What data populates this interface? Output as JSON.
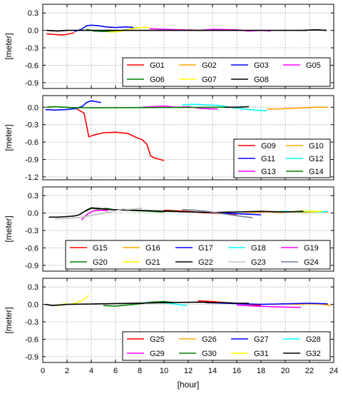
{
  "figure": {
    "xlabel": "[hour]",
    "x_ticks": [
      0,
      2,
      4,
      6,
      8,
      10,
      12,
      14,
      16,
      18,
      20,
      22,
      24
    ],
    "xlim": [
      0,
      24
    ]
  },
  "colors": {
    "red": "#ff0000",
    "orange": "#ffa500",
    "blue": "#0000ff",
    "cyan": "#00ffff",
    "magenta": "#ff00ff",
    "green": "#008000",
    "yellow": "#ffff00",
    "black": "#000000",
    "lightgray": "#c0c0c0",
    "slategray": "#708090"
  },
  "chart_data": [
    {
      "type": "line",
      "ylabel": "[meter]",
      "ylim": [
        -1.0,
        0.45
      ],
      "y_ticks": [
        0.3,
        0.0,
        -0.3,
        -0.6,
        -0.9
      ],
      "y_tick_labels": [
        "0.3",
        "0.0",
        "-0.3",
        "-0.6",
        "-0.9"
      ],
      "grid": true,
      "legend_position": "lower-right",
      "legend_columns": 4,
      "series": [
        {
          "name": "G01",
          "color": "#ff0000",
          "x": [
            0.3,
            1.0,
            1.6,
            2.2,
            2.6
          ],
          "y": [
            -0.06,
            -0.07,
            -0.08,
            -0.06,
            -0.04
          ]
        },
        {
          "name": "G02",
          "color": "#ffa500",
          "x": [
            12.0,
            13.0,
            14.2
          ],
          "y": [
            0.01,
            0.0,
            0.01
          ]
        },
        {
          "name": "G03",
          "color": "#0000ff",
          "x": [
            2.6,
            3.2,
            3.6,
            4.0,
            4.6,
            5.2,
            6.0,
            6.8,
            7.5
          ],
          "y": [
            -0.02,
            0.02,
            0.08,
            0.09,
            0.08,
            0.06,
            0.05,
            0.06,
            0.05
          ]
        },
        {
          "name": "G05",
          "color": "#ff00ff",
          "x": [
            8.8,
            10.0,
            11.5,
            13.0,
            14.0,
            16.0,
            17.0,
            18.0,
            18.8
          ],
          "y": [
            0.03,
            0.02,
            0.01,
            0.0,
            0.02,
            0.01,
            -0.01,
            0.0,
            -0.01
          ]
        },
        {
          "name": "G06",
          "color": "#008000",
          "x": [
            3.6,
            4.2,
            5.0,
            5.8,
            6.6,
            7.2,
            7.8
          ],
          "y": [
            0.02,
            -0.01,
            -0.02,
            -0.01,
            0.0,
            0.02,
            0.05
          ]
        },
        {
          "name": "G07",
          "color": "#ffff00",
          "x": [
            5.5,
            6.3,
            7.0,
            7.6,
            8.2,
            8.8
          ],
          "y": [
            -0.03,
            -0.02,
            0.01,
            0.04,
            0.05,
            0.05
          ]
        },
        {
          "name": "G08",
          "color": "#000000",
          "x": [
            0.3,
            1.2,
            2.0,
            21.5,
            22.5,
            23.4
          ],
          "y": [
            0.0,
            -0.01,
            0.0,
            0.0,
            0.01,
            0.0
          ]
        },
        {
          "name": "",
          "color": "#000000",
          "x": [
            0.3,
            1.2,
            2.0
          ],
          "y": [
            0.0,
            -0.01,
            0.0
          ]
        },
        {
          "name": "",
          "color": "#000000",
          "x": [
            21.5,
            22.5,
            23.4
          ],
          "y": [
            0.0,
            0.01,
            0.0
          ]
        }
      ]
    },
    {
      "type": "line",
      "ylabel": "[meter]",
      "ylim": [
        -1.25,
        0.2
      ],
      "y_ticks": [
        0.0,
        -0.3,
        -0.6,
        -0.9,
        -1.2
      ],
      "y_tick_labels": [
        "0.0",
        "-0.3",
        "-0.6",
        "-0.9",
        "-1.2"
      ],
      "grid": true,
      "legend_position": "lower-right",
      "legend_columns": 2,
      "series": [
        {
          "name": "G09",
          "color": "#ff0000",
          "x": [
            2.8,
            3.4,
            3.6,
            3.8,
            4.2,
            5.0,
            6.0,
            7.0,
            7.7,
            8.2,
            8.6,
            8.9,
            9.3,
            9.7,
            10.0
          ],
          "y": [
            -0.03,
            -0.1,
            -0.3,
            -0.51,
            -0.48,
            -0.44,
            -0.43,
            -0.45,
            -0.52,
            -0.56,
            -0.64,
            -0.84,
            -0.88,
            -0.9,
            -0.92
          ]
        },
        {
          "name": "G10",
          "color": "#ffa500",
          "x": [
            18.5,
            19.5,
            20.5,
            21.5,
            22.5,
            23.5
          ],
          "y": [
            -0.03,
            -0.03,
            -0.02,
            -0.01,
            0.0,
            0.0
          ]
        },
        {
          "name": "G11",
          "color": "#0000ff",
          "x": [
            0.2,
            1.0,
            2.0,
            2.8,
            3.3,
            3.6,
            4.0,
            4.6,
            4.8
          ],
          "y": [
            -0.04,
            -0.05,
            -0.04,
            -0.02,
            0.02,
            0.08,
            0.11,
            0.09,
            0.08
          ]
        },
        {
          "name": "G12",
          "color": "#00ffff",
          "x": [
            11.5,
            12.5,
            13.5,
            14.5,
            15.5,
            16.5,
            17.5,
            18.5
          ],
          "y": [
            0.04,
            0.05,
            0.04,
            0.03,
            0.0,
            -0.03,
            -0.05,
            -0.06
          ]
        },
        {
          "name": "G13",
          "color": "#ff00ff",
          "x": [
            8.2,
            9.0,
            10.0,
            11.0,
            12.0,
            13.0,
            14.0,
            14.4
          ],
          "y": [
            0.0,
            0.01,
            0.02,
            0.0,
            0.01,
            -0.02,
            -0.03,
            -0.03
          ]
        },
        {
          "name": "G14",
          "color": "#008000",
          "x": [
            0.3,
            1.0,
            1.8,
            2.6,
            15.0,
            16.0,
            17.0
          ],
          "y": [
            0.0,
            0.01,
            0.0,
            -0.01,
            0.0,
            0.0,
            0.01
          ]
        },
        {
          "name": "",
          "color": "#008000",
          "x": [
            0.3,
            1.0,
            1.8,
            2.6
          ],
          "y": [
            0.0,
            0.01,
            0.0,
            -0.01
          ]
        },
        {
          "name": "",
          "color": "#000000",
          "x": [
            15.0,
            16.0,
            17.0
          ],
          "y": [
            0.0,
            0.0,
            0.01
          ]
        }
      ]
    },
    {
      "type": "line",
      "ylabel": "[meter]",
      "ylim": [
        -1.0,
        0.45
      ],
      "y_ticks": [
        0.3,
        0.0,
        -0.3,
        -0.6,
        -0.9
      ],
      "y_tick_labels": [
        "0.3",
        "0.0",
        "-0.3",
        "-0.6",
        "-0.9"
      ],
      "grid": true,
      "legend_position": "lower-right",
      "legend_columns": 5,
      "series": [
        {
          "name": "G15",
          "color": "#ff0000",
          "x": [
            10.0,
            11.0,
            12.0,
            13.0,
            14.0,
            15.0,
            16.0
          ],
          "y": [
            0.05,
            0.04,
            0.03,
            0.01,
            0.0,
            -0.01,
            -0.02
          ]
        },
        {
          "name": "G16",
          "color": "#ffa500",
          "x": [
            16.5,
            17.5,
            18.5,
            19.5,
            20.5,
            21.5,
            22.5,
            23.5
          ],
          "y": [
            0.02,
            0.01,
            0.02,
            0.01,
            0.02,
            0.01,
            0.02,
            0.02
          ]
        },
        {
          "name": "G17",
          "color": "#0000ff",
          "x": [
            14.0,
            15.0,
            16.0,
            17.0,
            18.0
          ],
          "y": [
            0.01,
            0.0,
            -0.01,
            -0.02,
            -0.03
          ]
        },
        {
          "name": "G18",
          "color": "#00ffff",
          "x": [
            19.0,
            20.0,
            21.0,
            22.0,
            23.0,
            23.5
          ],
          "y": [
            0.02,
            0.03,
            0.02,
            0.03,
            0.02,
            0.03
          ]
        },
        {
          "name": "G19",
          "color": "#ff00ff",
          "x": [
            3.2,
            3.5,
            3.8,
            4.2,
            4.8,
            5.4
          ],
          "y": [
            -0.12,
            -0.05,
            0.0,
            0.04,
            0.05,
            0.04
          ]
        },
        {
          "name": "G20",
          "color": "#008000",
          "x": [
            3.5,
            4.0,
            4.6,
            5.2,
            5.8,
            9.8,
            10.5,
            11.0
          ],
          "y": [
            0.03,
            0.08,
            0.07,
            0.08,
            0.06,
            0.02,
            0.04,
            0.03
          ]
        },
        {
          "name": "G21",
          "color": "#ffff00",
          "x": [
            20.5,
            21.5,
            22.3,
            23.0
          ],
          "y": [
            0.02,
            0.04,
            0.03,
            0.03
          ]
        },
        {
          "name": "G22",
          "color": "#000000",
          "x": [
            0.5,
            1.2,
            2.0,
            2.6,
            3.0,
            3.6,
            4.0,
            4.6,
            5.0,
            5.6,
            12.0,
            14.0,
            16.0,
            18.0,
            20.0,
            21.5
          ],
          "y": [
            -0.07,
            -0.07,
            -0.06,
            -0.05,
            -0.03,
            0.05,
            0.09,
            0.08,
            0.07,
            0.06,
            0.02,
            0.01,
            0.02,
            0.03,
            0.02,
            0.03
          ]
        },
        {
          "name": "G23",
          "color": "#c0c0c0",
          "x": [
            1.0,
            2.0,
            3.0,
            3.8,
            4.6,
            5.4,
            6.0,
            6.6,
            7.0,
            7.6,
            8.2
          ],
          "y": [
            -0.1,
            -0.09,
            -0.08,
            -0.05,
            -0.02,
            0.01,
            0.04,
            0.07,
            0.06,
            0.07,
            0.08
          ]
        },
        {
          "name": "G24",
          "color": "#708090",
          "x": [
            11.5,
            12.5,
            13.5,
            14.5,
            15.5,
            16.5,
            17.3
          ],
          "y": [
            0.06,
            0.05,
            0.03,
            0.0,
            -0.03,
            -0.06,
            -0.08
          ]
        }
      ]
    },
    {
      "type": "line",
      "ylabel": "[meter]",
      "ylim": [
        -1.0,
        0.45
      ],
      "y_ticks": [
        0.3,
        0.0,
        -0.3,
        -0.6,
        -0.9
      ],
      "y_tick_labels": [
        "0.3",
        "0.0",
        "-0.3",
        "-0.6",
        "-0.9"
      ],
      "grid": true,
      "legend_position": "lower-right",
      "legend_columns": 5,
      "series": [
        {
          "name": "G25",
          "color": "#ff0000",
          "x": [
            12.8,
            14.0,
            15.0,
            16.0,
            17.0,
            18.0
          ],
          "y": [
            0.06,
            0.05,
            0.03,
            0.02,
            0.0,
            -0.02
          ]
        },
        {
          "name": "G26",
          "color": "#ffa500",
          "x": [
            19.0,
            20.0,
            21.0,
            22.0,
            23.0,
            23.8
          ],
          "y": [
            0.0,
            0.01,
            0.0,
            0.01,
            0.0,
            -0.02
          ]
        },
        {
          "name": "G27",
          "color": "#0000ff",
          "x": [
            13.5,
            15.0,
            16.5,
            18.0,
            20.0,
            22.0,
            23.5
          ],
          "y": [
            0.03,
            0.02,
            0.01,
            0.0,
            0.01,
            0.02,
            0.01
          ]
        },
        {
          "name": "G28",
          "color": "#00ffff",
          "x": [
            8.5,
            9.5,
            10.5,
            11.4,
            11.9
          ],
          "y": [
            0.04,
            0.03,
            0.02,
            -0.01,
            -0.02
          ]
        },
        {
          "name": "G29",
          "color": "#ff00ff",
          "x": [
            16.0,
            17.5,
            19.0,
            20.5,
            21.3
          ],
          "y": [
            -0.01,
            -0.03,
            -0.04,
            -0.05,
            -0.05
          ]
        },
        {
          "name": "G30",
          "color": "#008000",
          "x": [
            5.0,
            6.0,
            7.0,
            8.0,
            9.0,
            10.0,
            10.8
          ],
          "y": [
            -0.02,
            -0.03,
            -0.01,
            0.01,
            0.04,
            0.05,
            0.03
          ]
        },
        {
          "name": "G31",
          "color": "#ffff00",
          "x": [
            1.2,
            1.8,
            2.3,
            2.8,
            3.3,
            3.6,
            3.8
          ],
          "y": [
            -0.03,
            0.01,
            0.0,
            0.03,
            0.07,
            0.12,
            0.16
          ]
        },
        {
          "name": "G32",
          "color": "#000000",
          "x": [
            0.2,
            0.8,
            1.4,
            2.0,
            13.0,
            14.0,
            15.0,
            16.0,
            17.0
          ],
          "y": [
            0.0,
            -0.02,
            -0.01,
            0.0,
            0.04,
            0.03,
            0.03,
            0.02,
            0.02
          ]
        }
      ]
    }
  ]
}
